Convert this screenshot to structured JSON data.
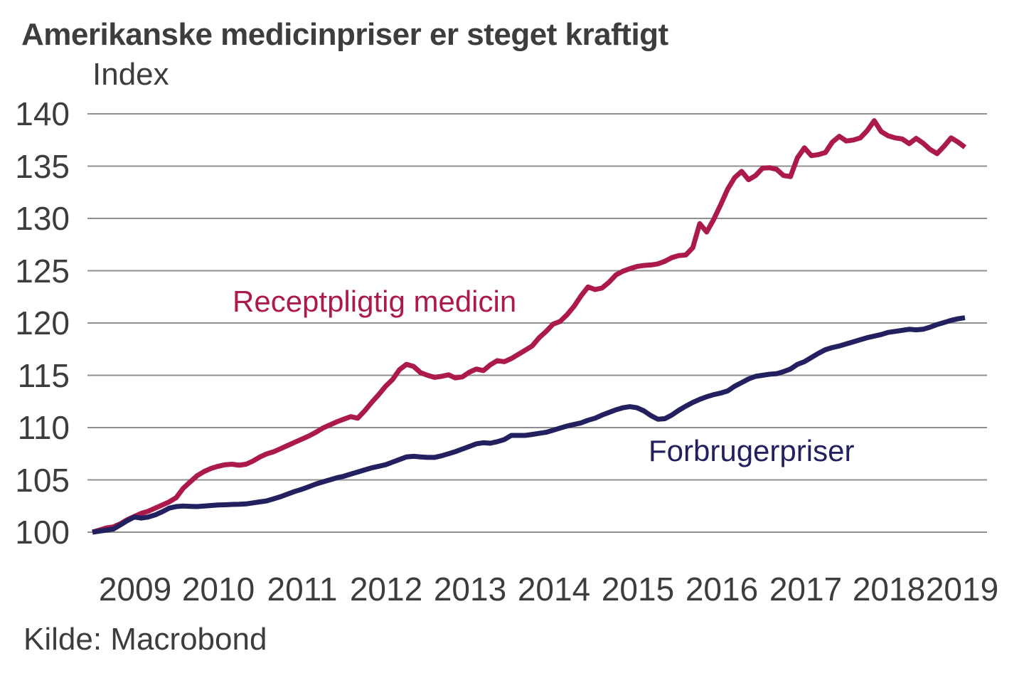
{
  "title": "Amerikanske medicinpriser er steget kraftigt",
  "source": "Kilde: Macrobond",
  "colors": {
    "background": "#ffffff",
    "text": "#3d3d3d",
    "grid": "#8f8f8f",
    "prescription_red": "#ac1a4b",
    "consumer_navy": "#232060"
  },
  "chart_data": {
    "type": "line",
    "title": "Amerikanske medicinpriser er steget kraftigt",
    "xlabel": "",
    "ylabel": "Index",
    "ylim": [
      100,
      140
    ],
    "yticks": [
      100,
      105,
      110,
      115,
      120,
      125,
      130,
      135,
      140
    ],
    "x_tick_labels": [
      "2009",
      "2010",
      "2011",
      "2012",
      "2013",
      "2014",
      "2015",
      "2016",
      "2017",
      "2018",
      "2019"
    ],
    "grid": "horizontal-only",
    "legend_position": "inline-annotations",
    "frequency": "monthly",
    "x_start": "2009-01",
    "x_end": "2019-06",
    "points_per_series": 126,
    "series": [
      {
        "name": "Receptpligtig medicin",
        "color": "#ac1a4b",
        "values": [
          100.0,
          100.2,
          100.4,
          100.5,
          100.8,
          101.2,
          101.5,
          101.8,
          102.0,
          102.3,
          102.6,
          102.9,
          103.3,
          104.2,
          104.8,
          105.4,
          105.8,
          106.1,
          106.3,
          106.45,
          106.5,
          106.4,
          106.5,
          106.8,
          107.2,
          107.5,
          107.7,
          108.0,
          108.3,
          108.6,
          108.9,
          109.2,
          109.55,
          109.95,
          110.25,
          110.55,
          110.8,
          111.05,
          110.9,
          111.6,
          112.4,
          113.15,
          113.95,
          114.6,
          115.55,
          116.05,
          115.85,
          115.25,
          115.0,
          114.8,
          114.9,
          115.05,
          114.75,
          114.85,
          115.3,
          115.6,
          115.45,
          116.0,
          116.4,
          116.3,
          116.6,
          117.0,
          117.4,
          117.8,
          118.6,
          119.2,
          119.9,
          120.15,
          120.8,
          121.6,
          122.6,
          123.45,
          123.2,
          123.35,
          123.9,
          124.6,
          124.95,
          125.2,
          125.4,
          125.5,
          125.55,
          125.65,
          125.9,
          126.25,
          126.45,
          126.5,
          127.2,
          129.5,
          128.7,
          129.9,
          131.3,
          132.8,
          133.9,
          134.5,
          133.7,
          134.1,
          134.8,
          134.85,
          134.7,
          134.1,
          134.0,
          135.8,
          136.75,
          136.0,
          136.1,
          136.3,
          137.3,
          137.85,
          137.4,
          137.5,
          137.7,
          138.4,
          139.35,
          138.3,
          137.9,
          137.7,
          137.6,
          137.15,
          137.65,
          137.2,
          136.6,
          136.2,
          136.9,
          137.7,
          137.3,
          136.8
        ]
      },
      {
        "name": "Forbrugerpriser",
        "color": "#232060",
        "values": [
          100.0,
          100.1,
          100.2,
          100.3,
          100.7,
          101.1,
          101.45,
          101.35,
          101.45,
          101.65,
          101.95,
          102.3,
          102.45,
          102.5,
          102.47,
          102.45,
          102.5,
          102.55,
          102.6,
          102.62,
          102.65,
          102.67,
          102.7,
          102.8,
          102.9,
          103.0,
          103.2,
          103.4,
          103.65,
          103.9,
          104.1,
          104.35,
          104.6,
          104.8,
          105.0,
          105.2,
          105.35,
          105.55,
          105.75,
          105.95,
          106.15,
          106.3,
          106.45,
          106.7,
          106.95,
          107.2,
          107.25,
          107.2,
          107.15,
          107.15,
          107.3,
          107.5,
          107.7,
          107.95,
          108.2,
          108.45,
          108.55,
          108.5,
          108.65,
          108.85,
          109.25,
          109.25,
          109.25,
          109.35,
          109.45,
          109.55,
          109.75,
          109.95,
          110.15,
          110.3,
          110.45,
          110.7,
          110.9,
          111.2,
          111.45,
          111.7,
          111.9,
          112.0,
          111.9,
          111.6,
          111.15,
          110.8,
          110.85,
          111.2,
          111.65,
          112.05,
          112.4,
          112.7,
          112.95,
          113.15,
          113.3,
          113.5,
          113.95,
          114.3,
          114.65,
          114.9,
          115.0,
          115.1,
          115.15,
          115.35,
          115.6,
          116.05,
          116.3,
          116.7,
          117.1,
          117.45,
          117.65,
          117.8,
          118.0,
          118.2,
          118.4,
          118.6,
          118.75,
          118.9,
          119.1,
          119.2,
          119.3,
          119.4,
          119.35,
          119.4,
          119.6,
          119.85,
          120.05,
          120.25,
          120.4,
          120.5
        ]
      }
    ],
    "annotations": [
      {
        "text": "Receptpligtig medicin",
        "color": "#ac1a4b"
      },
      {
        "text": "Forbrugerpriser",
        "color": "#232060"
      }
    ]
  }
}
